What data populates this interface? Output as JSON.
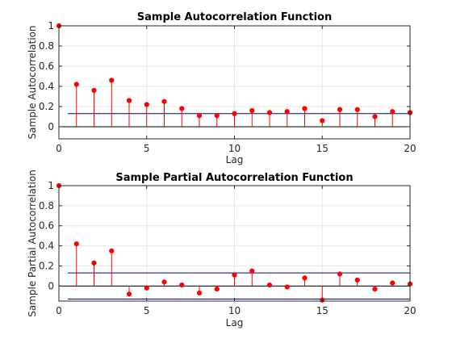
{
  "chart_data": [
    {
      "type": "stem",
      "title": "Sample Autocorrelation Function",
      "xlabel": "",
      "ylabel": "Sample Autocorrelation",
      "xlim": [
        0,
        20
      ],
      "ylim": [
        -0.12,
        1.0
      ],
      "xticks": [
        "0",
        "5",
        "10",
        "15",
        "20"
      ],
      "xtick_values": [
        0,
        5,
        10,
        15,
        20
      ],
      "yticks": [
        "0",
        "0.2",
        "0.4",
        "0.6",
        "0.8",
        "1"
      ],
      "ytick_values": [
        0,
        0.2,
        0.4,
        0.6,
        0.8,
        1
      ],
      "grid": true,
      "lags": [
        0,
        1,
        2,
        3,
        4,
        5,
        6,
        7,
        8,
        9,
        10,
        11,
        12,
        13,
        14,
        15,
        16,
        17,
        18,
        19,
        20
      ],
      "values": [
        1.0,
        0.42,
        0.36,
        0.46,
        0.26,
        0.22,
        0.25,
        0.18,
        0.11,
        0.11,
        0.13,
        0.16,
        0.14,
        0.15,
        0.18,
        0.06,
        0.17,
        0.17,
        0.1,
        0.15,
        0.14
      ],
      "confidence_bounds": [
        0.13
      ],
      "marker_color": "#ff0000",
      "bound_color": "#00008b"
    },
    {
      "type": "stem",
      "title": "Sample Partial Autocorrelation Function",
      "xlabel": "Lag",
      "ylabel": "Sample Partial Autocorrelation",
      "xlim": [
        0,
        20
      ],
      "ylim": [
        -0.15,
        1.0
      ],
      "xticks": [
        "0",
        "5",
        "10",
        "15",
        "20"
      ],
      "xtick_values": [
        0,
        5,
        10,
        15,
        20
      ],
      "yticks": [
        "0",
        "0.2",
        "0.4",
        "0.6",
        "0.8",
        "1"
      ],
      "ytick_values": [
        0,
        0.2,
        0.4,
        0.6,
        0.8,
        1
      ],
      "grid": true,
      "lags": [
        0,
        1,
        2,
        3,
        4,
        5,
        6,
        7,
        8,
        9,
        10,
        11,
        12,
        13,
        14,
        15,
        16,
        17,
        18,
        19,
        20
      ],
      "values": [
        1.0,
        0.42,
        0.23,
        0.35,
        -0.08,
        -0.02,
        0.04,
        0.01,
        -0.07,
        -0.03,
        0.11,
        0.15,
        0.01,
        -0.01,
        0.08,
        -0.14,
        0.12,
        0.06,
        -0.03,
        0.03,
        0.02
      ],
      "confidence_bounds": [
        0.13,
        -0.13
      ],
      "marker_color": "#ff0000",
      "bound_color": "#00008b"
    }
  ],
  "shared_xlabel": "Lag"
}
